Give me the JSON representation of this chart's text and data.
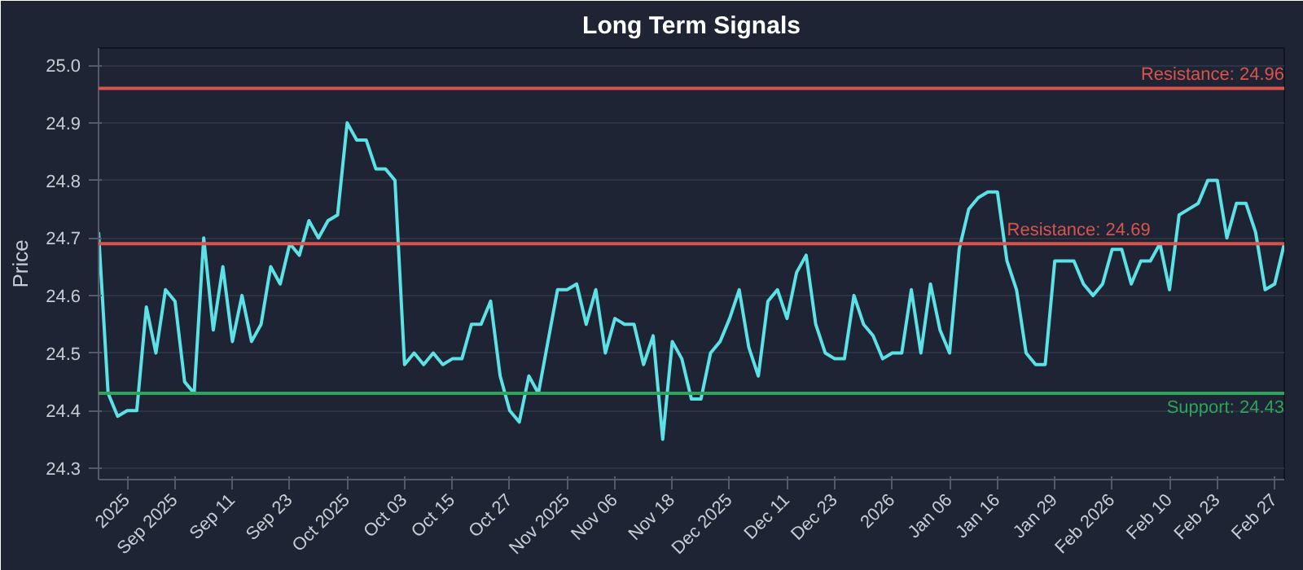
{
  "chart_data": {
    "type": "line",
    "title": "Long Term Signals",
    "ylabel": "Price",
    "categories": [
      null,
      null,
      null,
      "2025",
      null,
      null,
      null,
      null,
      "Sep 2025",
      null,
      null,
      null,
      null,
      null,
      "Sep 11",
      null,
      null,
      null,
      null,
      null,
      "Sep 23",
      null,
      null,
      null,
      null,
      null,
      "Oct 2025",
      null,
      null,
      null,
      null,
      null,
      "Oct 03",
      null,
      null,
      null,
      null,
      "Oct 15",
      null,
      null,
      null,
      null,
      null,
      "Oct 27",
      null,
      null,
      null,
      null,
      null,
      "Nov 2025",
      null,
      null,
      null,
      null,
      "Nov 06",
      null,
      null,
      null,
      null,
      null,
      "Nov 18",
      null,
      null,
      null,
      null,
      null,
      "Dec 2025",
      null,
      null,
      null,
      null,
      null,
      "Dec 11",
      null,
      null,
      null,
      null,
      "Dec 23",
      null,
      null,
      null,
      null,
      null,
      "2026",
      null,
      null,
      null,
      null,
      null,
      "Jan 06",
      null,
      null,
      null,
      null,
      "Jan 16",
      null,
      null,
      null,
      null,
      null,
      "Jan 29",
      null,
      null,
      null,
      null,
      null,
      "Feb 2026",
      null,
      null,
      null,
      null,
      null,
      "Feb 10",
      null,
      null,
      null,
      null,
      "Feb 23",
      null,
      null,
      null,
      null,
      null,
      "Feb 27",
      null
    ],
    "series": [
      {
        "color": "#5ce1e6",
        "values": [
          24.71,
          24.43,
          24.39,
          24.4,
          24.4,
          24.58,
          24.5,
          24.61,
          24.59,
          24.45,
          24.43,
          24.7,
          24.54,
          24.65,
          24.52,
          24.6,
          24.52,
          24.55,
          24.65,
          24.62,
          24.69,
          24.67,
          24.73,
          24.7,
          24.73,
          24.74,
          24.9,
          24.87,
          24.87,
          24.82,
          24.82,
          24.8,
          24.48,
          24.5,
          24.48,
          24.5,
          24.48,
          24.49,
          24.49,
          24.55,
          24.55,
          24.59,
          24.46,
          24.4,
          24.38,
          24.46,
          24.43,
          24.52,
          24.61,
          24.61,
          24.62,
          24.55,
          24.61,
          24.5,
          24.56,
          24.55,
          24.55,
          24.48,
          24.53,
          24.35,
          24.52,
          24.49,
          24.42,
          24.42,
          24.5,
          24.52,
          24.56,
          24.61,
          24.51,
          24.46,
          24.59,
          24.61,
          24.56,
          24.64,
          24.67,
          24.55,
          24.5,
          24.49,
          24.49,
          24.6,
          24.55,
          24.53,
          24.49,
          24.5,
          24.5,
          24.61,
          24.5,
          24.62,
          24.54,
          24.5,
          24.68,
          24.75,
          24.77,
          24.78,
          24.78,
          24.66,
          24.61,
          24.5,
          24.48,
          24.48,
          24.66,
          24.66,
          24.66,
          24.62,
          24.6,
          24.62,
          24.68,
          24.68,
          24.62,
          24.66,
          24.66,
          24.69,
          24.61,
          24.74,
          24.75,
          24.76,
          24.8,
          24.8,
          24.7,
          24.76,
          24.76,
          24.71,
          24.61,
          24.62,
          24.69
        ]
      }
    ],
    "ylim": [
      24.28,
      25.03
    ],
    "yticks": [
      24.3,
      24.4,
      24.5,
      24.6,
      24.7,
      24.8,
      24.9,
      {
        "value": 25.0,
        "label": "25.0"
      }
    ],
    "grid": "y",
    "line_style": "solid",
    "ref_lines": [
      {
        "axis": "y",
        "value": 24.96,
        "label": "Resistance: 24.96",
        "color": "#d9534f"
      },
      {
        "axis": "y",
        "value": 24.69,
        "label": "Resistance: 24.69",
        "color": "#d9534f"
      },
      {
        "axis": "y",
        "value": 24.43,
        "label": "Support: 24.43",
        "color": "#2ea35a"
      }
    ]
  }
}
